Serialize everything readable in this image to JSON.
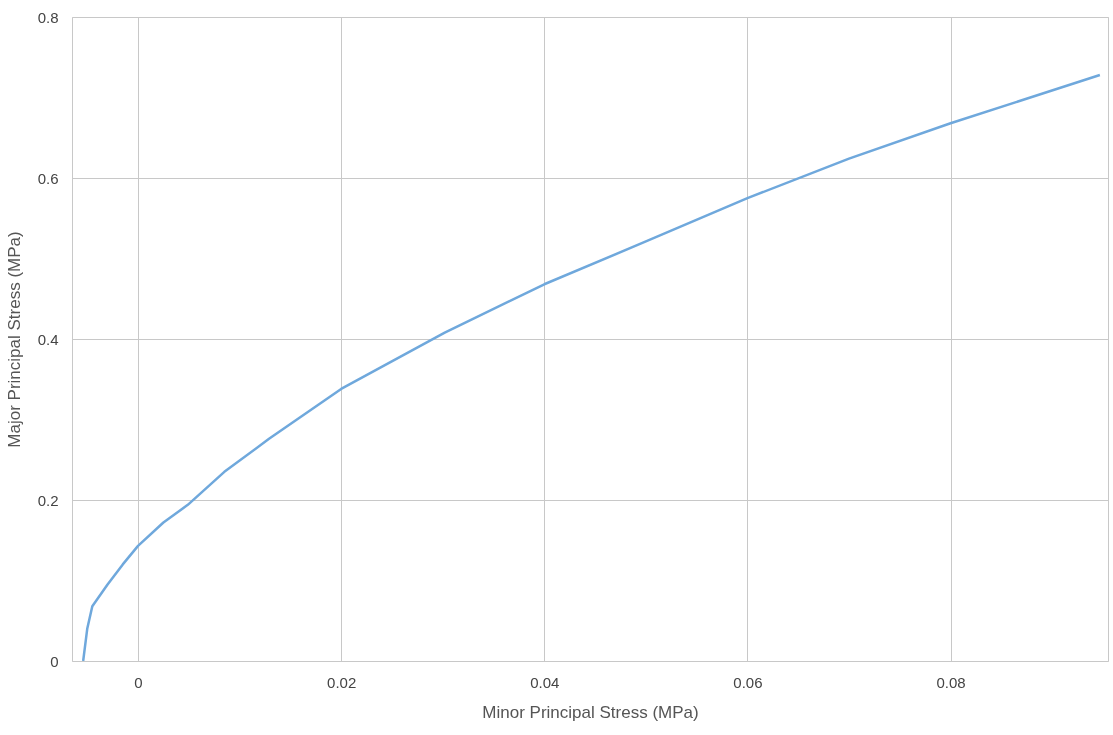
{
  "chart_data": {
    "type": "line",
    "xlabel": "Minor Principal Stress (MPa)",
    "ylabel": "Major Principal Stress (MPa)",
    "xlim": [
      -0.0065,
      0.0955
    ],
    "ylim": [
      0,
      0.8
    ],
    "xticks": [
      0,
      0.02,
      0.04,
      0.06,
      0.08
    ],
    "yticks": [
      0,
      0.2,
      0.4,
      0.6,
      0.8
    ],
    "grid": true,
    "marker": "none",
    "line_style": "solid",
    "series": [
      {
        "color": "#6fa8dc",
        "x": [
          -0.0054,
          -0.005,
          -0.0045,
          -0.003,
          -0.0015,
          0,
          0.0025,
          0.0049,
          0.0085,
          0.0129,
          0.02,
          0.0302,
          0.04,
          0.0496,
          0.06,
          0.07,
          0.08,
          0.0947
        ],
        "values": [
          0,
          0.04,
          0.068,
          0.095,
          0.12,
          0.143,
          0.172,
          0.194,
          0.235,
          0.276,
          0.338,
          0.408,
          0.468,
          0.519,
          0.575,
          0.624,
          0.668,
          0.728
        ]
      }
    ]
  }
}
